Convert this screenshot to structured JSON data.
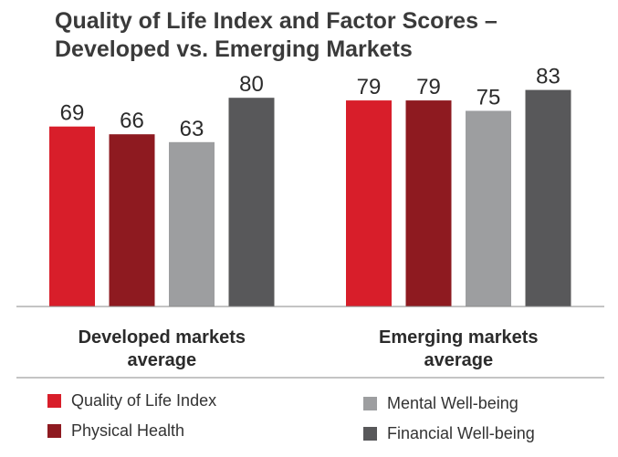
{
  "title_lines": [
    "Quality of Life Index and Factor Scores –",
    "Developed vs. Emerging Markets"
  ],
  "chart_data": {
    "type": "bar",
    "title": "Quality of Life Index and Factor Scores – Developed vs. Emerging Markets",
    "categories": [
      [
        "Developed markets",
        "average"
      ],
      [
        "Emerging markets",
        "average"
      ]
    ],
    "series": [
      {
        "name": "Quality of Life Index",
        "color": "#d81e2a",
        "values": [
          69,
          79
        ]
      },
      {
        "name": "Physical Health",
        "color": "#8e1a20",
        "values": [
          66,
          79
        ]
      },
      {
        "name": "Mental Well-being",
        "color": "#9d9ea0",
        "values": [
          63,
          75
        ]
      },
      {
        "name": "Financial Well-being",
        "color": "#58585a",
        "values": [
          80,
          83
        ]
      }
    ],
    "ylim": [
      0,
      100
    ],
    "grid": false,
    "legend_position": "bottom"
  }
}
